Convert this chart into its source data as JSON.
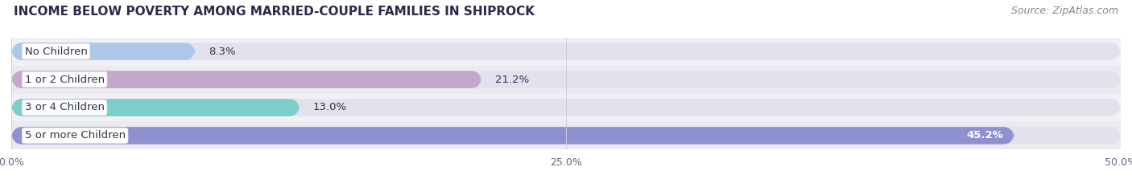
{
  "title": "INCOME BELOW POVERTY AMONG MARRIED-COUPLE FAMILIES IN SHIPROCK",
  "source": "Source: ZipAtlas.com",
  "categories": [
    "No Children",
    "1 or 2 Children",
    "3 or 4 Children",
    "5 or more Children"
  ],
  "values": [
    8.3,
    21.2,
    13.0,
    45.2
  ],
  "bar_colors": [
    "#adc8e8",
    "#c4a8c8",
    "#7dceca",
    "#8f90d0"
  ],
  "xlim": [
    0,
    50
  ],
  "xticks": [
    0,
    25,
    50
  ],
  "xtick_labels": [
    "0.0%",
    "25.0%",
    "50.0%"
  ],
  "background_color": "#f4f4f8",
  "row_colors": [
    "#f0f0f6",
    "#eaeaf2"
  ],
  "bar_background_color": "#e2e2ec",
  "label_bg_color": "#ffffff",
  "title_color": "#2a2a4a",
  "source_color": "#888888",
  "label_color": "#333344",
  "value_color": "#333344",
  "tick_color": "#666688",
  "title_fontsize": 11,
  "source_fontsize": 9,
  "label_fontsize": 9.5,
  "value_fontsize": 9.5,
  "tick_fontsize": 9,
  "bar_height": 0.62,
  "bar_rounding": 0.5
}
